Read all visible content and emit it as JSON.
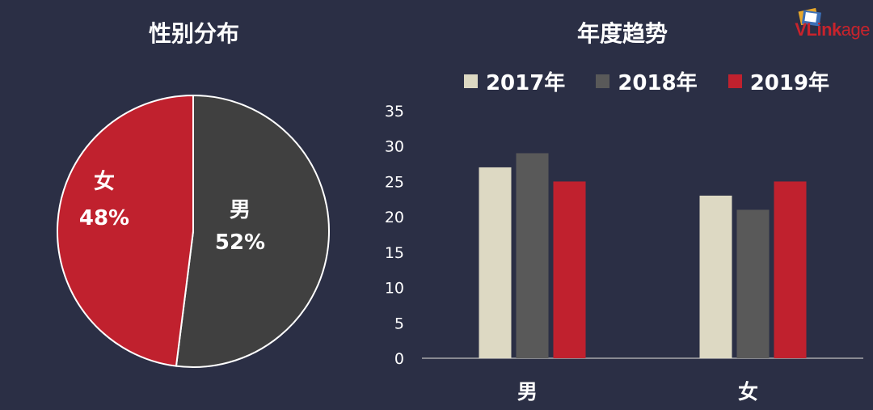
{
  "logo": {
    "text_bold": "VLink",
    "text_light": "age"
  },
  "colors": {
    "background": "#2b2f45",
    "male": "#404040",
    "female": "#c0212e",
    "y2017": "#ddd9c3",
    "y2018": "#595959",
    "y2019": "#c0212e",
    "axis": "#bfbfbf"
  },
  "chart_data": [
    {
      "type": "pie",
      "title": "性别分布",
      "slices": [
        {
          "label": "男",
          "value": 52,
          "display": "52%"
        },
        {
          "label": "女",
          "value": 48,
          "display": "48%"
        }
      ]
    },
    {
      "type": "bar",
      "title": "年度趋势",
      "categories": [
        "男",
        "女"
      ],
      "series": [
        {
          "name": "2017年",
          "values": [
            27,
            23
          ]
        },
        {
          "name": "2018年",
          "values": [
            29,
            21
          ]
        },
        {
          "name": "2019年",
          "values": [
            25,
            25
          ]
        }
      ],
      "ylim": [
        0,
        35
      ],
      "yticks": [
        "0",
        "5",
        "10",
        "15",
        "20",
        "25",
        "30",
        "35"
      ],
      "grid": false,
      "legend": "top"
    }
  ]
}
